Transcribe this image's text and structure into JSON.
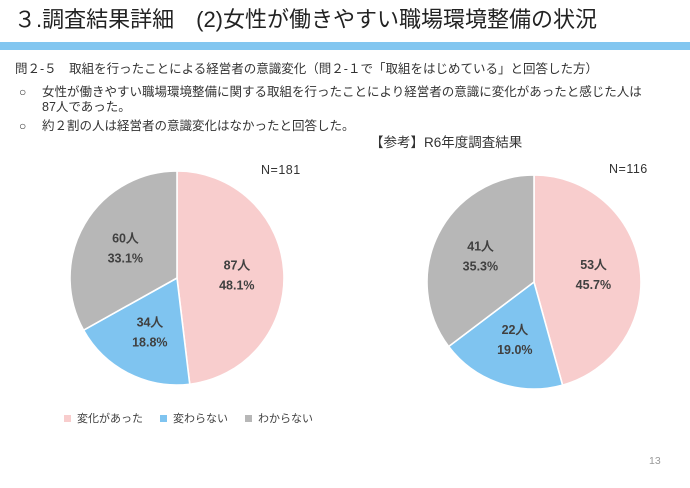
{
  "slide": {
    "title": "３.調査結果詳細　(2)女性が働きやすい職場環境整備の状況",
    "page_number": "13"
  },
  "colors": {
    "accent_bar": "#82C6F0",
    "pink": "#F8CDCD",
    "blue": "#7FC4F0",
    "gray": "#B7B7B7",
    "label_text": "#404040"
  },
  "question": {
    "heading": "問２-５　取組を行ったことによる経営者の意識変化（問２-１で「取組をはじめている」と回答した方）",
    "bullet_marker": "○",
    "bullets": [
      "女性が働きやすい職場環境整備に関する取組を行ったことにより経営者の意識に変化があったと感じた人は\n87人であった。",
      "約２割の人は経営者の意識変化はなかったと回答した。"
    ]
  },
  "reference_heading": "【参考】R6年度調査結果",
  "legend": {
    "items": [
      {
        "label": "変化があった",
        "color": "#F8CDCD"
      },
      {
        "label": "変わらない",
        "color": "#7FC4F0"
      },
      {
        "label": "わからない",
        "color": "#B7B7B7"
      }
    ]
  },
  "chart_data": [
    {
      "type": "pie",
      "name": "current-survey",
      "n_label": "N=181",
      "start_angle_deg": 0,
      "direction": "clockwise",
      "slices": [
        {
          "label": "変化があった",
          "value": 87,
          "value_label": "87人",
          "percent": 48.1,
          "percent_label": "48.1%",
          "color": "#F8CDCD"
        },
        {
          "label": "変わらない",
          "value": 34,
          "value_label": "34人",
          "percent": 18.8,
          "percent_label": "18.8%",
          "color": "#7FC4F0"
        },
        {
          "label": "わからない",
          "value": 60,
          "value_label": "60人",
          "percent": 33.1,
          "percent_label": "33.1%",
          "color": "#B7B7B7"
        }
      ]
    },
    {
      "type": "pie",
      "name": "reference-r6-survey",
      "n_label": "N=116",
      "start_angle_deg": 0,
      "direction": "clockwise",
      "slices": [
        {
          "label": "変化があった",
          "value": 53,
          "value_label": "53人",
          "percent": 45.7,
          "percent_label": "45.7%",
          "color": "#F8CDCD"
        },
        {
          "label": "変わらない",
          "value": 22,
          "value_label": "22人",
          "percent": 19.0,
          "percent_label": "19.0%",
          "color": "#7FC4F0"
        },
        {
          "label": "わからない",
          "value": 41,
          "value_label": "41人",
          "percent": 35.3,
          "percent_label": "35.3%",
          "color": "#B7B7B7"
        }
      ]
    }
  ]
}
